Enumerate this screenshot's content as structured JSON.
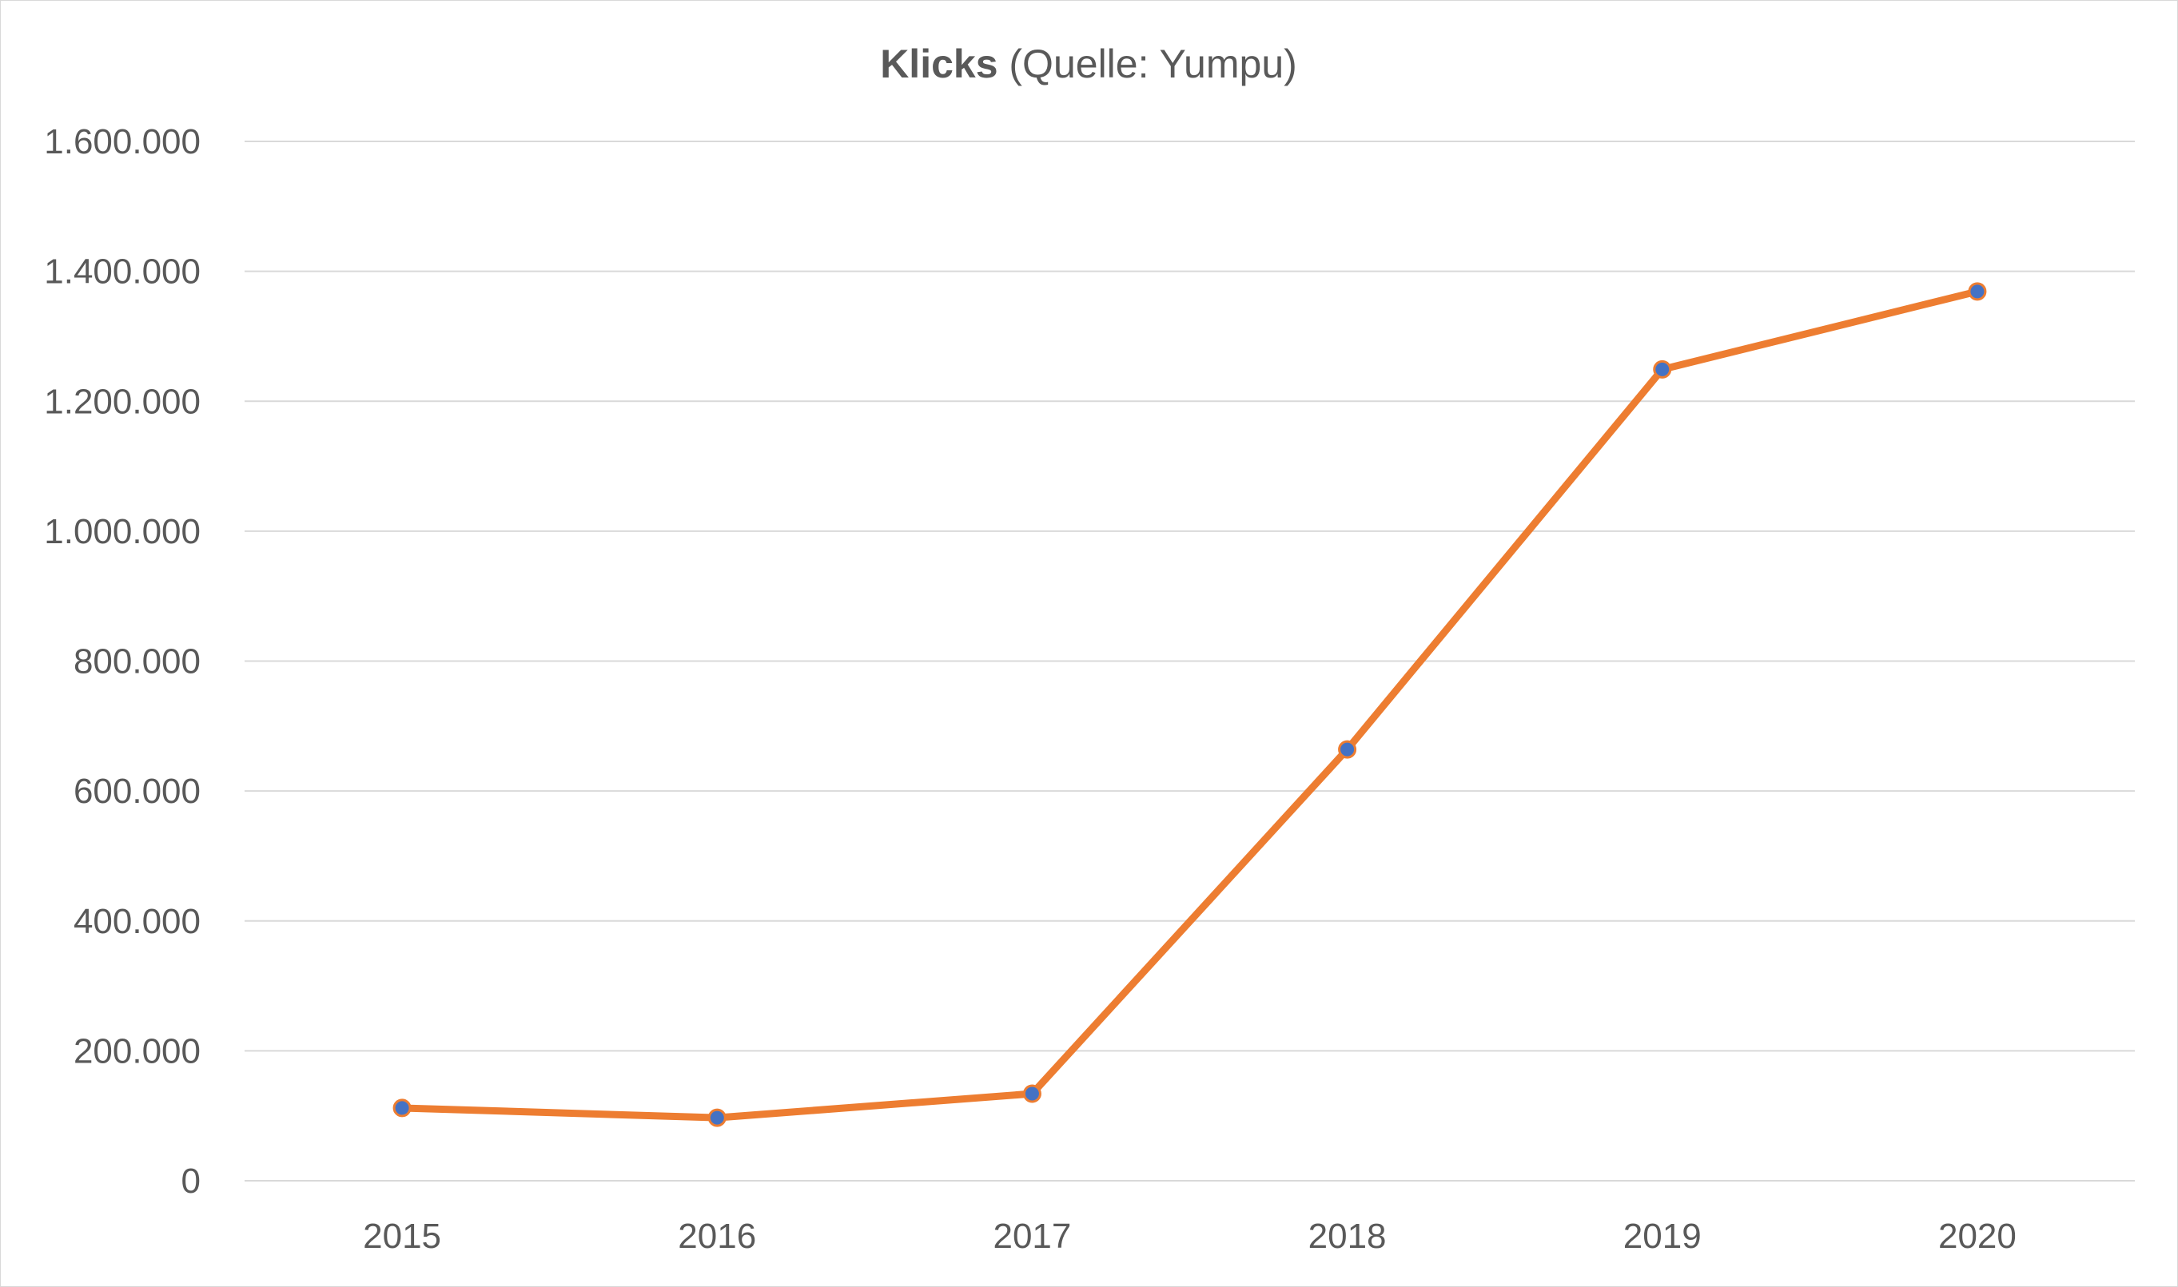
{
  "chart_data": {
    "type": "line",
    "title": {
      "bold": "Klicks",
      "normal": " (Quelle: Yumpu)"
    },
    "xlabel": "",
    "ylabel": "",
    "categories": [
      "2015",
      "2016",
      "2017",
      "2018",
      "2019",
      "2020"
    ],
    "series": [
      {
        "values": [
          112000,
          97000,
          134000,
          664000,
          1249000,
          1369000
        ]
      }
    ],
    "ylim": [
      0,
      1600000
    ],
    "yticks": [
      0,
      200000,
      400000,
      600000,
      800000,
      1000000,
      1200000,
      1400000,
      1600000
    ],
    "ytick_labels": [
      "0",
      "200.000",
      "400.000",
      "600.000",
      "800.000",
      "1.000.000",
      "1.200.000",
      "1.400.000",
      "1.600.000"
    ],
    "grid": true,
    "legend": "none",
    "colors": {
      "line": "#ED7D31",
      "marker_fill": "#4472C4",
      "marker_edge": "#ED7D31",
      "grid": "#d9d9d9",
      "text": "#595959"
    }
  }
}
